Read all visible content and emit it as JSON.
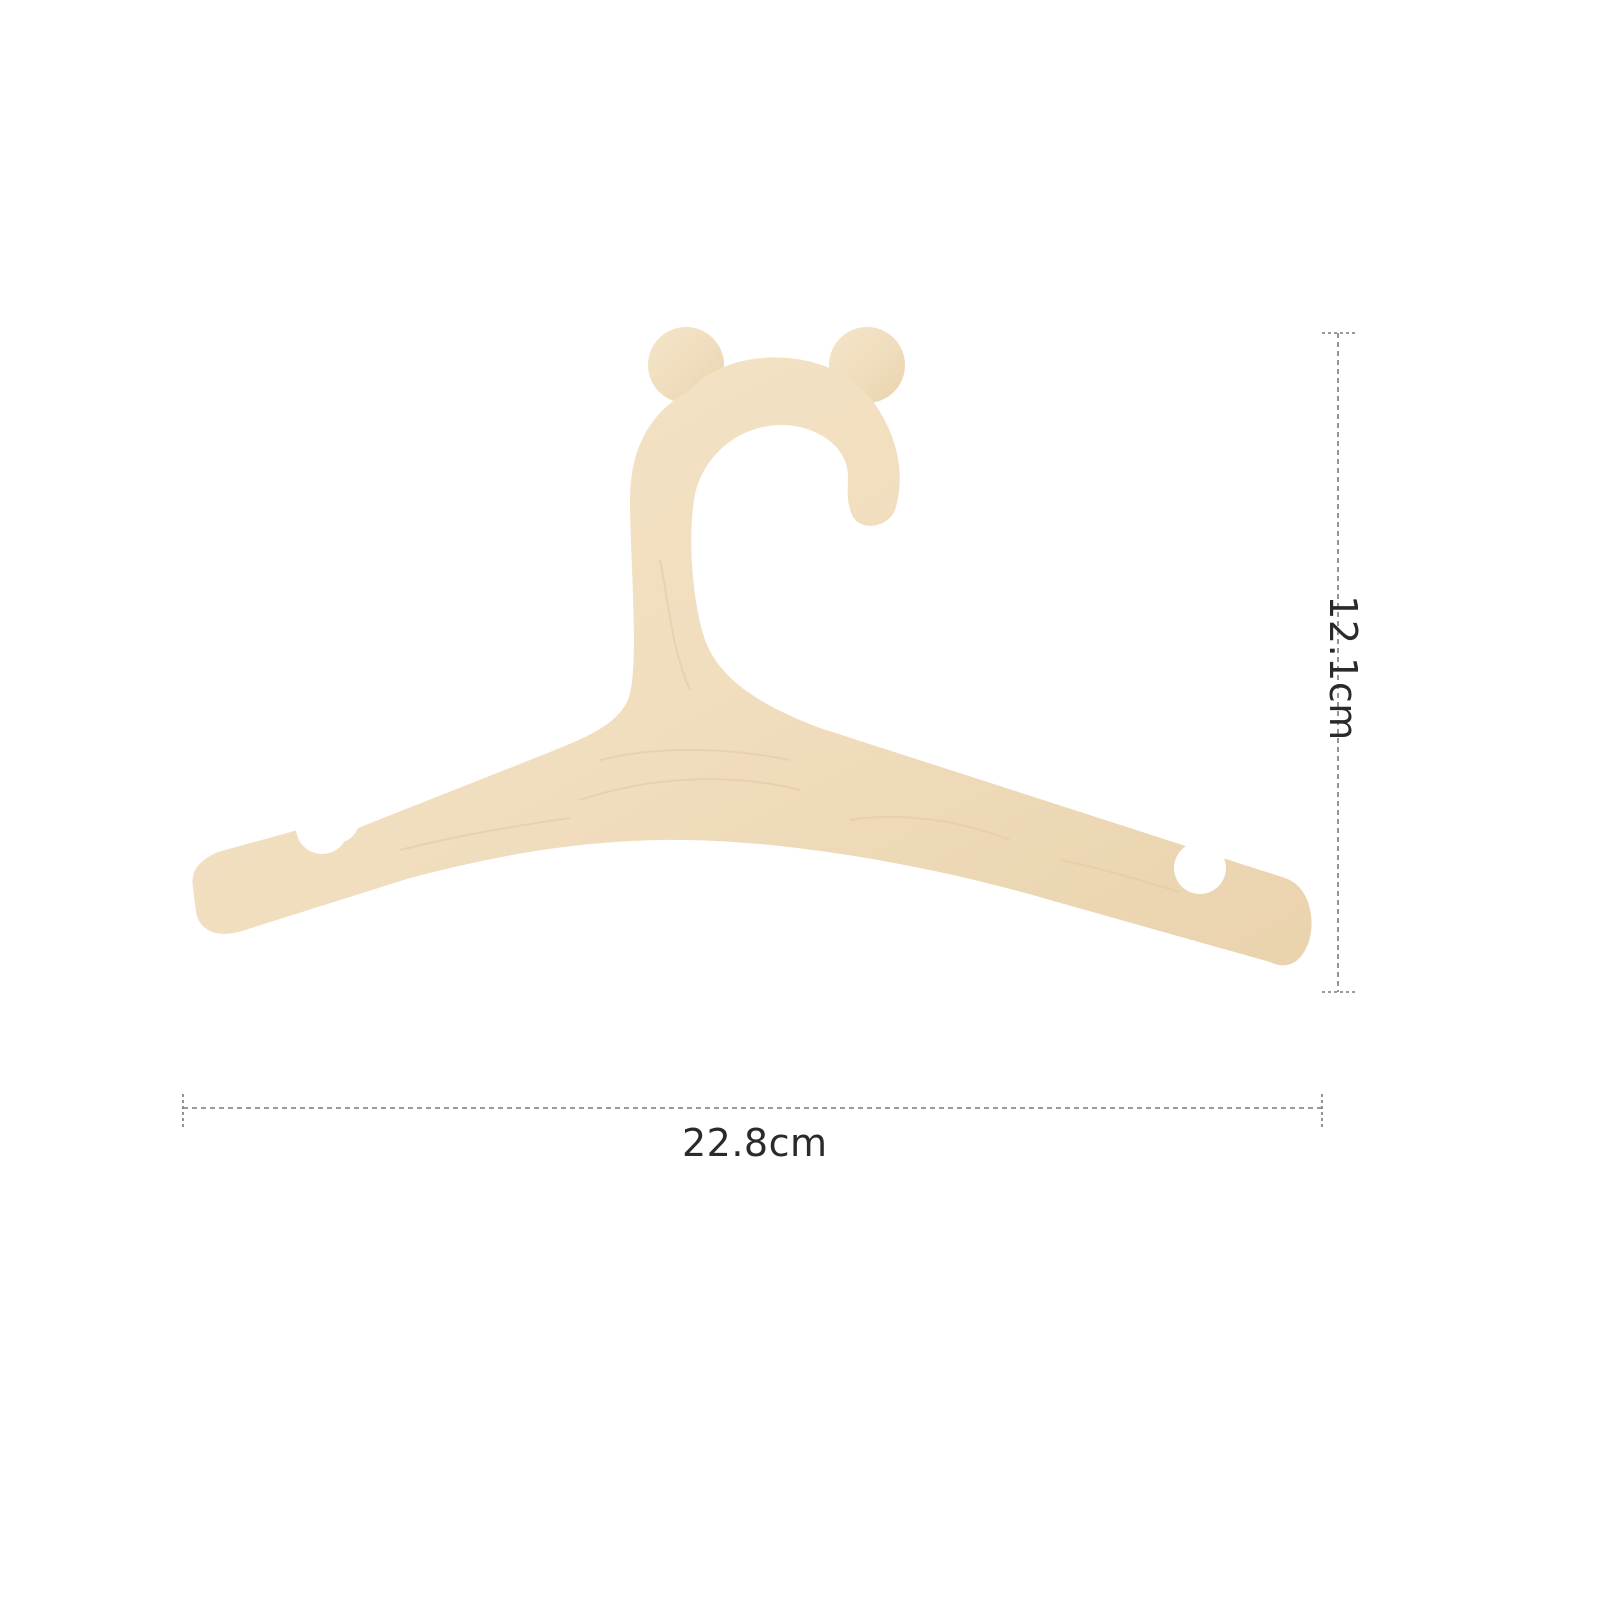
{
  "product": {
    "name": "wooden-bear-ear-hanger",
    "wood_color": "#f1dfc1",
    "wood_shade": "#e6cfab"
  },
  "dimensions": {
    "width_label": "22.8cm",
    "height_label": "12.1cm",
    "line_color": "#7a7a7a"
  }
}
